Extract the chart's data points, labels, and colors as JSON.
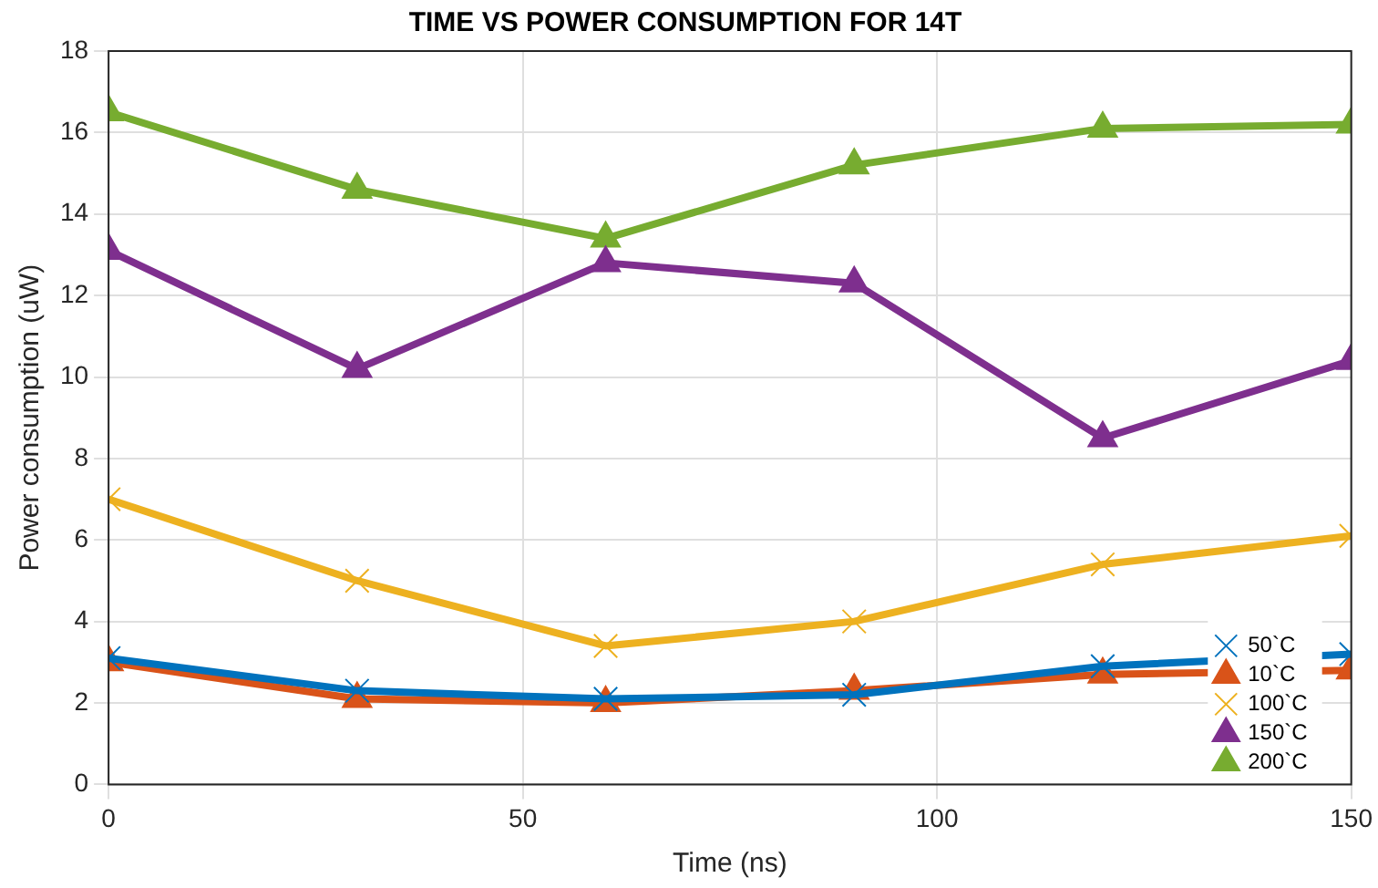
{
  "chart_data": {
    "type": "line",
    "title": "TIME VS POWER CONSUMPTION FOR 14T",
    "xlabel": "Time (ns)",
    "ylabel": "Power consumption (uW)",
    "x": [
      0,
      30,
      60,
      90,
      120,
      150
    ],
    "xlim": [
      0,
      150
    ],
    "xticks": [
      0,
      50,
      100,
      150
    ],
    "ylim": [
      0,
      18
    ],
    "yticks": [
      0,
      2,
      4,
      6,
      8,
      10,
      12,
      14,
      16,
      18
    ],
    "grid": true,
    "legend": "bottom right",
    "line_style": "solid",
    "series": [
      {
        "name": "50`C",
        "color": "#0072bd",
        "marker": "cross",
        "values": [
          3.1,
          2.3,
          2.1,
          2.2,
          2.9,
          3.2
        ]
      },
      {
        "name": "10`C",
        "color": "#d95319",
        "marker": "triangle",
        "values": [
          3.0,
          2.1,
          2.0,
          2.3,
          2.7,
          2.8
        ]
      },
      {
        "name": "100`C",
        "color": "#edb120",
        "marker": "cross",
        "values": [
          7.0,
          5.0,
          3.4,
          4.0,
          5.4,
          6.1
        ]
      },
      {
        "name": "150`C",
        "color": "#7e2f8e",
        "marker": "triangle",
        "values": [
          13.1,
          10.2,
          12.8,
          12.3,
          8.5,
          10.4
        ]
      },
      {
        "name": "200`C",
        "color": "#77ac30",
        "marker": "triangle",
        "values": [
          16.5,
          14.6,
          13.4,
          15.2,
          16.1,
          16.2
        ]
      }
    ]
  }
}
